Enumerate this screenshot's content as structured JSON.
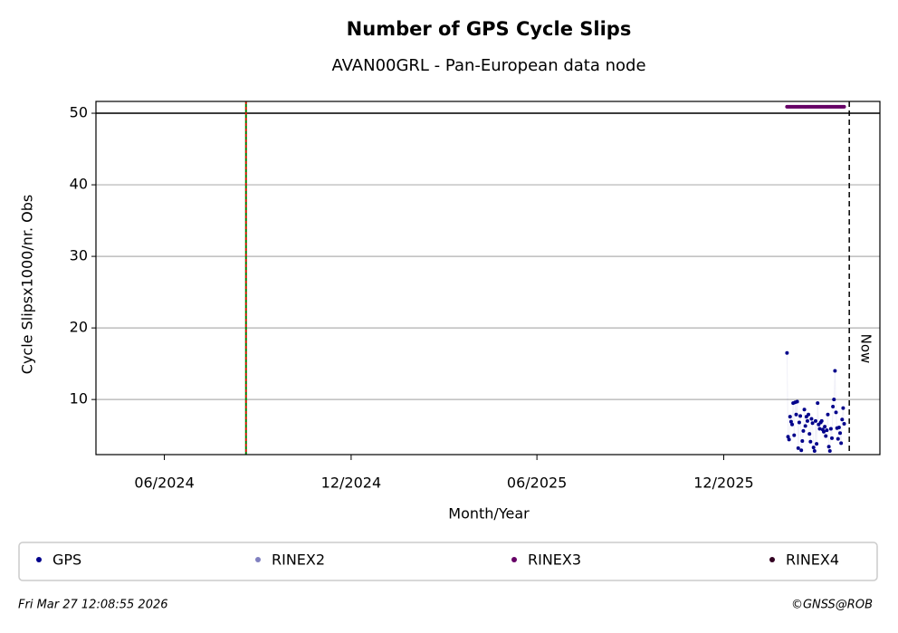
{
  "chart_data": {
    "type": "scatter",
    "title": "Number of GPS Cycle Slips",
    "subtitle": "AVAN00GRL - Pan-European data node",
    "x_label": "Month/Year",
    "y_label": "Cycle Slipsx1000/nr. Obs",
    "xlim": [
      "2024-03-26",
      "2026-05-03"
    ],
    "xticks": [
      {
        "value": "2024-06",
        "label": "06/2024"
      },
      {
        "value": "2024-12",
        "label": "12/2024"
      },
      {
        "value": "2025-06",
        "label": "06/2025"
      },
      {
        "value": "2025-12",
        "label": "12/2025"
      }
    ],
    "ylim": [
      2.3,
      51.65
    ],
    "yticks": [
      10,
      20,
      30,
      40,
      50
    ],
    "grid": true,
    "hlines": [
      50
    ],
    "event_line": {
      "x": "2024-08-20",
      "colors": [
        "#008000",
        "#ff0000"
      ]
    },
    "now_line": {
      "x": "2026-04-03",
      "label": "Now"
    },
    "legend": "bottom",
    "series": [
      {
        "name": "GPS",
        "color": "#00008b",
        "x": [
          "2026-02-01",
          "2026-02-02",
          "2026-02-03",
          "2026-02-04",
          "2026-02-05",
          "2026-02-06",
          "2026-02-07",
          "2026-02-08",
          "2026-02-09",
          "2026-02-10",
          "2026-02-11",
          "2026-02-12",
          "2026-02-13",
          "2026-02-14",
          "2026-02-15",
          "2026-02-16",
          "2026-02-17",
          "2026-02-18",
          "2026-02-19",
          "2026-02-20",
          "2026-02-21",
          "2026-02-22",
          "2026-02-23",
          "2026-02-24",
          "2026-02-25",
          "2026-02-26",
          "2026-02-27",
          "2026-02-28",
          "2026-03-01",
          "2026-03-02",
          "2026-03-03",
          "2026-03-04",
          "2026-03-05",
          "2026-03-06",
          "2026-03-07",
          "2026-03-08",
          "2026-03-09",
          "2026-03-10",
          "2026-03-11",
          "2026-03-12",
          "2026-03-13",
          "2026-03-14",
          "2026-03-15",
          "2026-03-16",
          "2026-03-17",
          "2026-03-18",
          "2026-03-19",
          "2026-03-20",
          "2026-03-21",
          "2026-03-22",
          "2026-03-23",
          "2026-03-24",
          "2026-03-25",
          "2026-03-26",
          "2026-03-27",
          "2026-03-28",
          "2026-03-29"
        ],
        "values": [
          16.5,
          4.8,
          4.4,
          7.6,
          6.9,
          6.5,
          9.5,
          5.0,
          9.6,
          7.9,
          9.7,
          3.2,
          6.8,
          7.7,
          2.9,
          4.2,
          5.6,
          8.6,
          6.3,
          7.6,
          7.0,
          7.9,
          5.2,
          4.1,
          7.3,
          6.7,
          3.3,
          2.8,
          7.0,
          3.8,
          9.5,
          6.5,
          5.9,
          6.8,
          7.0,
          5.8,
          5.5,
          6.2,
          4.9,
          5.7,
          7.9,
          3.4,
          2.8,
          5.9,
          4.6,
          9.0,
          10.0,
          14.0,
          8.2,
          6.0,
          4.5,
          6.1,
          5.3,
          3.9,
          7.2,
          8.8,
          6.6
        ]
      },
      {
        "name": "RINEX2",
        "color": "#8080c0",
        "x": [],
        "values": []
      },
      {
        "name": "RINEX3",
        "color": "#660066",
        "x": [
          "2026-02-01",
          "2026-02-02",
          "2026-02-03",
          "2026-02-04",
          "2026-02-05",
          "2026-02-06",
          "2026-02-07",
          "2026-02-08",
          "2026-02-09",
          "2026-02-10",
          "2026-02-11",
          "2026-02-12",
          "2026-02-13",
          "2026-02-14",
          "2026-02-15",
          "2026-02-16",
          "2026-02-17",
          "2026-02-18",
          "2026-02-19",
          "2026-02-20",
          "2026-02-21",
          "2026-02-22",
          "2026-02-23",
          "2026-02-24",
          "2026-02-25",
          "2026-02-26",
          "2026-02-27",
          "2026-02-28",
          "2026-03-01",
          "2026-03-02",
          "2026-03-03",
          "2026-03-04",
          "2026-03-05",
          "2026-03-06",
          "2026-03-07",
          "2026-03-08",
          "2026-03-09",
          "2026-03-10",
          "2026-03-11",
          "2026-03-12",
          "2026-03-13",
          "2026-03-14",
          "2026-03-15",
          "2026-03-16",
          "2026-03-17",
          "2026-03-18",
          "2026-03-19",
          "2026-03-20",
          "2026-03-21",
          "2026-03-22",
          "2026-03-23",
          "2026-03-24",
          "2026-03-25",
          "2026-03-26",
          "2026-03-27",
          "2026-03-28",
          "2026-03-29"
        ],
        "values": [
          50.9,
          50.9,
          50.9,
          50.9,
          50.9,
          50.9,
          50.9,
          50.9,
          50.9,
          50.9,
          50.9,
          50.9,
          50.9,
          50.9,
          50.9,
          50.9,
          50.9,
          50.9,
          50.9,
          50.9,
          50.9,
          50.9,
          50.9,
          50.9,
          50.9,
          50.9,
          50.9,
          50.9,
          50.9,
          50.9,
          50.9,
          50.9,
          50.9,
          50.9,
          50.9,
          50.9,
          50.9,
          50.9,
          50.9,
          50.9,
          50.9,
          50.9,
          50.9,
          50.9,
          50.9,
          50.9,
          50.9,
          50.9,
          50.9,
          50.9,
          50.9,
          50.9,
          50.9,
          50.9,
          50.9,
          50.9,
          50.9
        ]
      },
      {
        "name": "RINEX4",
        "color": "#330022",
        "x": [],
        "values": []
      }
    ]
  },
  "footer": {
    "timestamp": "Fri Mar 27 12:08:55 2026",
    "copyright": "©GNSS@ROB"
  }
}
